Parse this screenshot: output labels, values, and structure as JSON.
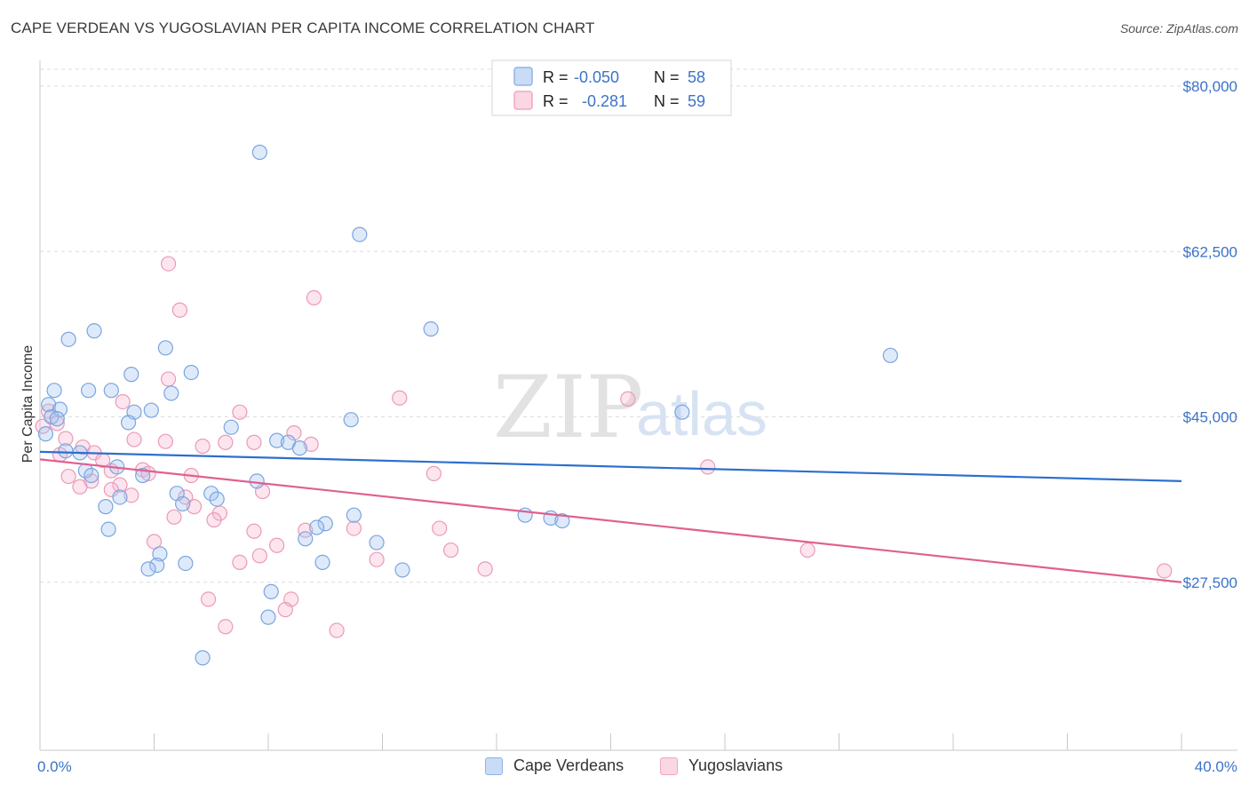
{
  "header": {
    "title": "CAPE VERDEAN VS YUGOSLAVIAN PER CAPITA INCOME CORRELATION CHART",
    "source": "Source: ZipAtlas.com"
  },
  "watermark": {
    "zip": "ZIP",
    "atlas": "atlas"
  },
  "legend": {
    "series": [
      {
        "name": "Cape Verdeans",
        "r_label": "R =",
        "r_value": "-0.050",
        "n_label": "N =",
        "n_value": "58",
        "color": "#8fb4e8",
        "line_color": "#2d6fcc"
      },
      {
        "name": "Yugoslavians",
        "r_label": "R =",
        "r_value": "-0.281",
        "n_label": "N =",
        "n_value": "59",
        "color": "#f2a7c0",
        "line_color": "#e0608f"
      }
    ]
  },
  "chart_data": {
    "type": "scatter",
    "title": "CAPE VERDEAN VS YUGOSLAVIAN PER CAPITA INCOME CORRELATION CHART",
    "xlabel": "",
    "ylabel": "Per Capita Income",
    "xlim": [
      0,
      40
    ],
    "ylim": [
      10000,
      83000
    ],
    "x_tick_labels": [
      "0.0%",
      "40.0%"
    ],
    "y_ticks": [
      {
        "value": 27500,
        "label": "$27,500"
      },
      {
        "value": 45000,
        "label": "$45,000"
      },
      {
        "value": 62500,
        "label": "$62,500"
      },
      {
        "value": 80000,
        "label": "$80,000"
      }
    ],
    "series": [
      {
        "name": "Cape Verdeans",
        "trend": {
          "x": [
            0,
            40
          ],
          "y": [
            41300,
            38200
          ]
        },
        "points": [
          [
            7.7,
            73000
          ],
          [
            11.2,
            64300
          ],
          [
            13.7,
            54300
          ],
          [
            29.8,
            51500
          ],
          [
            1.9,
            54100
          ],
          [
            1.0,
            53200
          ],
          [
            4.4,
            52300
          ],
          [
            3.2,
            49500
          ],
          [
            5.3,
            49700
          ],
          [
            0.5,
            47800
          ],
          [
            1.7,
            47800
          ],
          [
            2.5,
            47800
          ],
          [
            4.6,
            47500
          ],
          [
            0.3,
            46300
          ],
          [
            0.7,
            45800
          ],
          [
            3.3,
            45500
          ],
          [
            3.9,
            45700
          ],
          [
            0.4,
            45000
          ],
          [
            3.1,
            44400
          ],
          [
            6.7,
            43900
          ],
          [
            10.9,
            44700
          ],
          [
            22.5,
            45500
          ],
          [
            0.9,
            41400
          ],
          [
            1.4,
            41200
          ],
          [
            0.2,
            43200
          ],
          [
            0.6,
            44800
          ],
          [
            8.3,
            42500
          ],
          [
            8.7,
            42300
          ],
          [
            9.1,
            41700
          ],
          [
            1.6,
            39300
          ],
          [
            1.8,
            38800
          ],
          [
            2.7,
            39700
          ],
          [
            3.6,
            38800
          ],
          [
            7.6,
            38200
          ],
          [
            4.8,
            36900
          ],
          [
            6.0,
            36900
          ],
          [
            6.2,
            36300
          ],
          [
            2.8,
            36500
          ],
          [
            2.3,
            35500
          ],
          [
            5.0,
            35800
          ],
          [
            11.0,
            34600
          ],
          [
            17.0,
            34600
          ],
          [
            17.9,
            34300
          ],
          [
            18.3,
            34000
          ],
          [
            10.0,
            33700
          ],
          [
            9.7,
            33300
          ],
          [
            2.4,
            33100
          ],
          [
            9.3,
            32100
          ],
          [
            11.8,
            31700
          ],
          [
            4.2,
            30500
          ],
          [
            4.1,
            29300
          ],
          [
            5.1,
            29500
          ],
          [
            3.8,
            28900
          ],
          [
            9.9,
            29600
          ],
          [
            12.7,
            28800
          ],
          [
            8.1,
            26500
          ],
          [
            8.0,
            23800
          ],
          [
            5.7,
            19500
          ]
        ]
      },
      {
        "name": "Yugoslavians",
        "trend": {
          "x": [
            0,
            40
          ],
          "y": [
            40500,
            27500
          ]
        },
        "points": [
          [
            4.5,
            61200
          ],
          [
            4.9,
            56300
          ],
          [
            9.6,
            57600
          ],
          [
            4.5,
            49000
          ],
          [
            12.6,
            47000
          ],
          [
            20.6,
            46900
          ],
          [
            7.0,
            45500
          ],
          [
            2.9,
            46600
          ],
          [
            0.3,
            45600
          ],
          [
            0.6,
            44300
          ],
          [
            0.9,
            42700
          ],
          [
            3.3,
            42600
          ],
          [
            4.4,
            42400
          ],
          [
            5.7,
            41900
          ],
          [
            6.5,
            42300
          ],
          [
            7.5,
            42300
          ],
          [
            8.9,
            43300
          ],
          [
            9.5,
            42100
          ],
          [
            1.5,
            41800
          ],
          [
            1.9,
            41200
          ],
          [
            2.2,
            40400
          ],
          [
            0.7,
            41000
          ],
          [
            1.0,
            38700
          ],
          [
            1.8,
            38200
          ],
          [
            2.5,
            39300
          ],
          [
            3.6,
            39400
          ],
          [
            3.8,
            39000
          ],
          [
            5.3,
            38800
          ],
          [
            7.8,
            37100
          ],
          [
            2.8,
            37800
          ],
          [
            1.4,
            37600
          ],
          [
            2.5,
            37300
          ],
          [
            3.2,
            36700
          ],
          [
            5.1,
            36500
          ],
          [
            5.4,
            35500
          ],
          [
            6.3,
            34800
          ],
          [
            4.7,
            34400
          ],
          [
            6.1,
            34100
          ],
          [
            13.8,
            39000
          ],
          [
            23.4,
            39700
          ],
          [
            11.0,
            33200
          ],
          [
            9.3,
            33000
          ],
          [
            14.0,
            33200
          ],
          [
            7.5,
            32900
          ],
          [
            4.0,
            31800
          ],
          [
            8.3,
            31400
          ],
          [
            14.4,
            30900
          ],
          [
            7.7,
            30300
          ],
          [
            7.0,
            29600
          ],
          [
            11.8,
            29900
          ],
          [
            15.6,
            28900
          ],
          [
            26.9,
            30900
          ],
          [
            39.4,
            28700
          ],
          [
            5.9,
            25700
          ],
          [
            8.8,
            25700
          ],
          [
            8.6,
            24600
          ],
          [
            6.5,
            22800
          ],
          [
            10.4,
            22400
          ],
          [
            0.1,
            44000
          ]
        ]
      }
    ]
  }
}
